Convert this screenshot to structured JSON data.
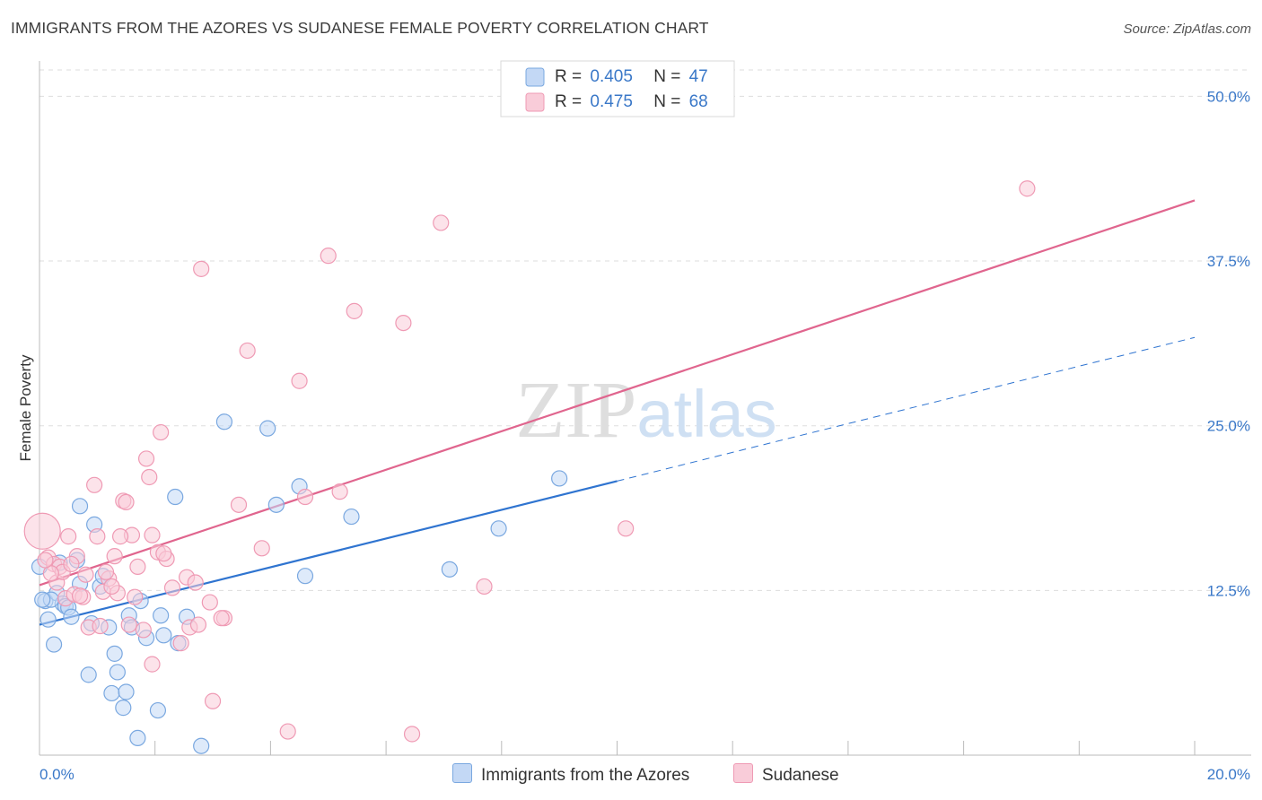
{
  "chart_data": {
    "type": "scatter",
    "title": "IMMIGRANTS FROM THE AZORES VS SUDANESE FEMALE POVERTY CORRELATION CHART",
    "source": "Source: ZipAtlas.com",
    "xlabel": "",
    "ylabel": "Female Poverty",
    "xlim": [
      0,
      20
    ],
    "ylim": [
      0,
      52
    ],
    "x_tick_labels": [
      "0.0%",
      "20.0%"
    ],
    "y_ticks": [
      12.5,
      25.0,
      37.5,
      50.0
    ],
    "y_tick_labels": [
      "12.5%",
      "25.0%",
      "37.5%",
      "50.0%"
    ],
    "grid": true,
    "watermark": "ZIPatlas",
    "legend": {
      "stats": [
        {
          "r_label": "R =",
          "r_value": "0.405",
          "n_label": "N =",
          "n_value": "47"
        },
        {
          "r_label": "R =",
          "r_value": "0.475",
          "n_label": "N =",
          "n_value": "68"
        }
      ]
    },
    "series": [
      {
        "name": "Immigrants from the Azores",
        "color": "#7aa8e0",
        "fill": "#c3d8f5",
        "line_color": "#2f74d0",
        "trend": {
          "x0": 0.0,
          "y0": 9.9,
          "x1": 10.0,
          "y1": 20.8,
          "dash_x1": 20.0,
          "dash_y1": 31.7
        },
        "points": [
          [
            0.1,
            11.7
          ],
          [
            0.15,
            10.3
          ],
          [
            0.25,
            8.4
          ],
          [
            0.3,
            12.3
          ],
          [
            0.35,
            14.6
          ],
          [
            0.4,
            11.5
          ],
          [
            0.45,
            11.3
          ],
          [
            0.5,
            11.2
          ],
          [
            0.55,
            10.5
          ],
          [
            0.7,
            18.9
          ],
          [
            0.7,
            13.0
          ],
          [
            0.85,
            6.1
          ],
          [
            0.9,
            10.0
          ],
          [
            0.95,
            17.5
          ],
          [
            1.05,
            12.8
          ],
          [
            1.2,
            9.7
          ],
          [
            1.25,
            4.7
          ],
          [
            1.3,
            7.7
          ],
          [
            1.35,
            6.3
          ],
          [
            1.45,
            3.6
          ],
          [
            1.5,
            4.8
          ],
          [
            1.55,
            10.6
          ],
          [
            1.6,
            9.7
          ],
          [
            1.7,
            1.3
          ],
          [
            1.75,
            11.7
          ],
          [
            1.85,
            8.9
          ],
          [
            2.05,
            3.4
          ],
          [
            2.1,
            10.6
          ],
          [
            2.15,
            9.1
          ],
          [
            2.35,
            19.6
          ],
          [
            2.4,
            8.5
          ],
          [
            2.55,
            10.5
          ],
          [
            2.8,
            0.7
          ],
          [
            3.2,
            25.3
          ],
          [
            3.95,
            24.8
          ],
          [
            4.1,
            19.0
          ],
          [
            4.5,
            20.4
          ],
          [
            4.6,
            13.6
          ],
          [
            5.4,
            18.1
          ],
          [
            7.1,
            14.1
          ],
          [
            7.95,
            17.2
          ],
          [
            9.0,
            21.0
          ],
          [
            0.0,
            14.3
          ],
          [
            0.2,
            11.8
          ],
          [
            0.65,
            14.8
          ],
          [
            1.1,
            13.6
          ],
          [
            0.05,
            11.8
          ]
        ]
      },
      {
        "name": "Sudanese",
        "color": "#ef9ab4",
        "fill": "#f9ccd9",
        "line_color": "#e0658e",
        "trend": {
          "x0": 0.0,
          "y0": 12.9,
          "x1": 20.0,
          "y1": 42.1
        },
        "points": [
          [
            0.05,
            17.0
          ],
          [
            0.15,
            15.0
          ],
          [
            0.25,
            14.5
          ],
          [
            0.3,
            13.1
          ],
          [
            0.35,
            14.3
          ],
          [
            0.4,
            13.9
          ],
          [
            0.45,
            11.9
          ],
          [
            0.5,
            16.6
          ],
          [
            0.6,
            12.2
          ],
          [
            0.65,
            15.1
          ],
          [
            0.75,
            12.0
          ],
          [
            0.85,
            9.7
          ],
          [
            0.95,
            20.5
          ],
          [
            1.0,
            16.6
          ],
          [
            1.1,
            12.4
          ],
          [
            1.2,
            13.4
          ],
          [
            1.3,
            15.1
          ],
          [
            1.35,
            12.3
          ],
          [
            1.45,
            19.3
          ],
          [
            1.55,
            9.9
          ],
          [
            1.6,
            16.7
          ],
          [
            1.7,
            14.3
          ],
          [
            1.85,
            22.5
          ],
          [
            1.9,
            21.1
          ],
          [
            1.95,
            16.7
          ],
          [
            2.05,
            15.4
          ],
          [
            2.1,
            24.5
          ],
          [
            2.2,
            14.9
          ],
          [
            2.3,
            12.7
          ],
          [
            2.45,
            8.5
          ],
          [
            2.55,
            13.5
          ],
          [
            2.6,
            9.7
          ],
          [
            2.7,
            13.1
          ],
          [
            2.75,
            9.9
          ],
          [
            2.8,
            36.9
          ],
          [
            2.95,
            11.6
          ],
          [
            3.0,
            4.1
          ],
          [
            3.2,
            10.4
          ],
          [
            3.45,
            19.0
          ],
          [
            3.6,
            30.7
          ],
          [
            3.85,
            15.7
          ],
          [
            4.3,
            1.8
          ],
          [
            4.5,
            28.4
          ],
          [
            4.6,
            19.6
          ],
          [
            5.0,
            37.9
          ],
          [
            5.2,
            20.0
          ],
          [
            5.45,
            33.7
          ],
          [
            6.3,
            32.8
          ],
          [
            6.45,
            1.6
          ],
          [
            6.95,
            40.4
          ],
          [
            7.7,
            12.8
          ],
          [
            10.15,
            17.2
          ],
          [
            17.1,
            43.0
          ],
          [
            0.2,
            13.8
          ],
          [
            0.55,
            14.5
          ],
          [
            0.8,
            13.7
          ],
          [
            1.05,
            9.8
          ],
          [
            1.25,
            12.8
          ],
          [
            1.4,
            16.6
          ],
          [
            1.5,
            19.2
          ],
          [
            1.65,
            12.0
          ],
          [
            1.8,
            9.5
          ],
          [
            1.95,
            6.9
          ],
          [
            2.15,
            15.3
          ],
          [
            3.15,
            10.4
          ],
          [
            0.1,
            14.8
          ],
          [
            0.7,
            12.1
          ],
          [
            1.15,
            13.9
          ]
        ]
      }
    ]
  }
}
